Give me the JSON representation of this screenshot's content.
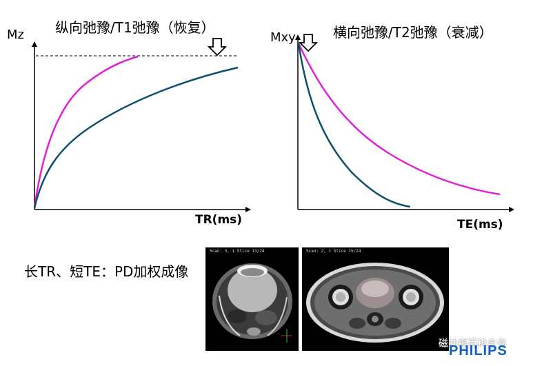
{
  "left_panel": {
    "title": "纵向弛豫/T1弛豫（恢复）",
    "y_label": "Mz",
    "x_label": "TR(ms)",
    "curve_colors": [
      "#e020d8",
      "#0d4f6e"
    ]
  },
  "right_panel": {
    "title": "横向弛豫/T2弛豫（衰减）",
    "y_label": "Mxy",
    "x_label": "TE(ms)",
    "curve_colors": [
      "#e020d8",
      "#0d4f6e"
    ]
  },
  "caption": "长TR、短TE：PD加权成像",
  "images": {
    "knee_scan": {
      "header": "Scan: 3, 1 Slice 13/24"
    },
    "pelvis_scan": {
      "header": "Scan: 2, 1 Slice 15/24"
    }
  },
  "watermark": "磁共振百科全书",
  "brand": "PHILIPS"
}
